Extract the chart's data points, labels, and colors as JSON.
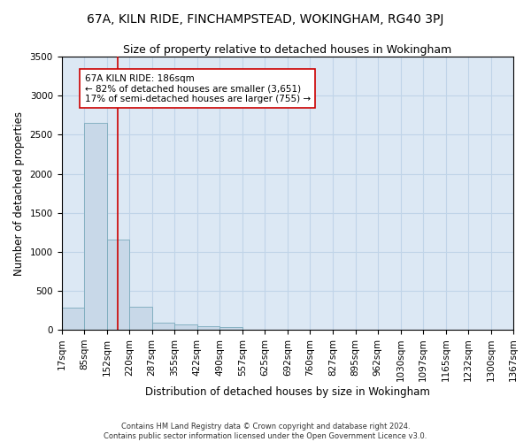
{
  "title": "67A, KILN RIDE, FINCHAMPSTEAD, WOKINGHAM, RG40 3PJ",
  "subtitle": "Size of property relative to detached houses in Wokingham",
  "xlabel": "Distribution of detached houses by size in Wokingham",
  "ylabel": "Number of detached properties",
  "bin_edges": [
    17,
    85,
    152,
    220,
    287,
    355,
    422,
    490,
    557,
    625,
    692,
    760,
    827,
    895,
    962,
    1030,
    1097,
    1165,
    1232,
    1300,
    1367
  ],
  "bar_heights": [
    280,
    2650,
    1160,
    290,
    90,
    65,
    40,
    35,
    0,
    0,
    0,
    0,
    0,
    0,
    0,
    0,
    0,
    0,
    0,
    0
  ],
  "bar_color": "#c8d8e8",
  "bar_edgecolor": "#7aaabb",
  "grid_color": "#c0d4e8",
  "background_color": "#dce8f4",
  "vline_x": 186,
  "vline_color": "#cc0000",
  "ylim": [
    0,
    3500
  ],
  "annotation_text": "67A KILN RIDE: 186sqm\n← 82% of detached houses are smaller (3,651)\n17% of semi-detached houses are larger (755) →",
  "annotation_box_color": "#ffffff",
  "annotation_box_edgecolor": "#cc0000",
  "footer_text": "Contains HM Land Registry data © Crown copyright and database right 2024.\nContains public sector information licensed under the Open Government Licence v3.0.",
  "title_fontsize": 10,
  "subtitle_fontsize": 9,
  "tick_fontsize": 7.5,
  "ylabel_fontsize": 8.5,
  "xlabel_fontsize": 8.5,
  "annotation_fontsize": 7.5
}
